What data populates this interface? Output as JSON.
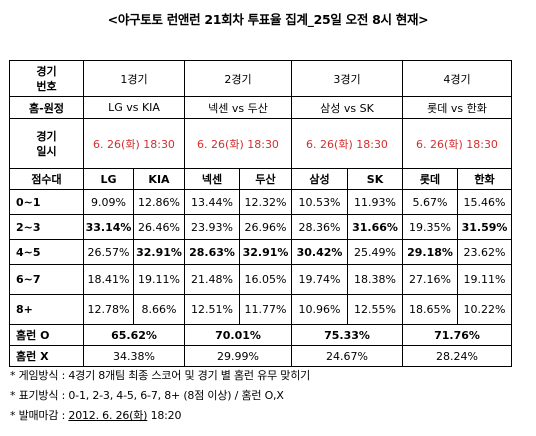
{
  "title": "<야구토토 런앤런 21회차 투표율 집계_25일 오전 8시 현재>",
  "table": {
    "header_cell": "경기\n번호",
    "games": [
      "1경기",
      "2경기",
      "3경기",
      "4경기"
    ],
    "match_label": "홈-원정",
    "matches": [
      "LG vs KIA",
      "넥센 vs 두산",
      "삼성 vs SK",
      "롯데 vs 한화"
    ],
    "date_label": "경기\n일시",
    "dates": [
      "6. 26(화) 18:30",
      "6. 26(화) 18:30",
      "6. 26(화) 18:30",
      "6. 26(화) 18:30"
    ],
    "score_label": "점수대",
    "teams": [
      "LG",
      "KIA",
      "넥센",
      "두산",
      "삼성",
      "SK",
      "롯데",
      "한화"
    ],
    "rows": [
      {
        "label": "0~1",
        "values": [
          "9.09%",
          "12.86%",
          "13.44%",
          "12.32%",
          "10.53%",
          "11.93%",
          "5.67%",
          "15.46%"
        ]
      },
      {
        "label": "2~3",
        "values": [
          "33.14%",
          "26.46%",
          "23.93%",
          "26.96%",
          "28.36%",
          "31.66%",
          "19.35%",
          "31.59%"
        ]
      },
      {
        "label": "4~5",
        "values": [
          "26.57%",
          "32.91%",
          "28.63%",
          "32.91%",
          "30.42%",
          "25.49%",
          "29.18%",
          "23.62%"
        ]
      },
      {
        "label": "6~7",
        "values": [
          "18.41%",
          "19.11%",
          "21.48%",
          "16.05%",
          "19.74%",
          "18.38%",
          "27.16%",
          "19.11%"
        ]
      },
      {
        "label": "8+",
        "values": [
          "12.78%",
          "8.66%",
          "12.51%",
          "11.77%",
          "10.96%",
          "12.55%",
          "18.65%",
          "10.22%"
        ]
      }
    ],
    "homerun_o_label": "홈런 O",
    "homerun_o": [
      "65.62%",
      "70.01%",
      "75.33%",
      "71.76%"
    ],
    "homerun_x_label": "홈런 X",
    "homerun_x": [
      "34.38%",
      "29.99%",
      "24.67%",
      "28.24%"
    ]
  },
  "notes": {
    "line1": "* 게임방식 : 4경기 8개팀 최종 스코어 및 경기 별 홈런 유무 맞히기",
    "line2": "* 표기방식 : 0-1, 2-3, 4-5, 6-7, 8+ (8점 이상) / 홈런 O,X",
    "line3_prefix": "* 발매마감 : ",
    "line3_underlined": "2012. 6. 26(화)",
    "line3_suffix": " 18:20"
  },
  "colors": {
    "date_text": "#d32f2f",
    "border": "#000000"
  }
}
